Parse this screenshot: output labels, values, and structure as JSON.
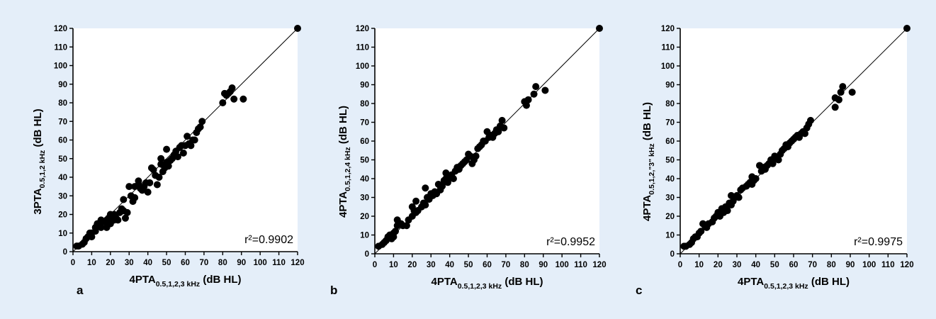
{
  "colors": {
    "background": "#e4eef9",
    "plot": "#ffffff",
    "ink": "#000000"
  },
  "chart_data": [
    {
      "type": "scatter",
      "panel_label": "a",
      "xlabel": {
        "main": "4PTA",
        "sub": "0.5,1,2,3 kHz",
        "unit": " (dB HL)"
      },
      "ylabel": {
        "main": "3PTA",
        "sub": "0.5,1,2 kHz",
        "unit": " (dB HL)"
      },
      "xlim": [
        0,
        120
      ],
      "ylim": [
        0,
        120
      ],
      "xticks": [
        0,
        10,
        20,
        30,
        40,
        50,
        60,
        70,
        80,
        90,
        100,
        110,
        120
      ],
      "yticks": [
        0,
        10,
        20,
        30,
        40,
        50,
        60,
        70,
        80,
        90,
        100,
        110,
        120
      ],
      "identity_line": true,
      "annotation": "r²=0.9902",
      "points": [
        [
          2,
          3
        ],
        [
          3,
          3
        ],
        [
          5,
          4
        ],
        [
          6,
          5
        ],
        [
          7,
          7
        ],
        [
          8,
          8
        ],
        [
          9,
          9
        ],
        [
          9,
          10
        ],
        [
          10,
          10
        ],
        [
          10,
          8
        ],
        [
          12,
          11
        ],
        [
          12,
          13
        ],
        [
          13,
          15
        ],
        [
          14,
          14
        ],
        [
          15,
          17
        ],
        [
          15,
          13
        ],
        [
          16,
          16
        ],
        [
          17,
          16
        ],
        [
          18,
          17
        ],
        [
          18,
          13
        ],
        [
          19,
          18
        ],
        [
          20,
          20
        ],
        [
          20,
          15
        ],
        [
          21,
          19
        ],
        [
          22,
          20
        ],
        [
          22,
          17
        ],
        [
          23,
          18
        ],
        [
          24,
          17
        ],
        [
          25,
          21
        ],
        [
          26,
          23
        ],
        [
          27,
          22
        ],
        [
          27,
          28
        ],
        [
          28,
          18
        ],
        [
          29,
          21
        ],
        [
          30,
          35
        ],
        [
          31,
          30
        ],
        [
          32,
          27
        ],
        [
          33,
          29
        ],
        [
          33,
          35
        ],
        [
          35,
          38
        ],
        [
          35,
          36
        ],
        [
          36,
          34
        ],
        [
          37,
          33
        ],
        [
          38,
          35
        ],
        [
          39,
          37
        ],
        [
          40,
          32
        ],
        [
          41,
          37
        ],
        [
          42,
          45
        ],
        [
          43,
          44
        ],
        [
          44,
          41
        ],
        [
          45,
          36
        ],
        [
          46,
          40
        ],
        [
          47,
          47
        ],
        [
          47,
          50
        ],
        [
          48,
          43
        ],
        [
          49,
          45
        ],
        [
          50,
          48
        ],
        [
          50,
          55
        ],
        [
          51,
          46
        ],
        [
          52,
          49
        ],
        [
          53,
          50
        ],
        [
          54,
          52
        ],
        [
          55,
          54
        ],
        [
          56,
          51
        ],
        [
          57,
          56
        ],
        [
          58,
          57
        ],
        [
          59,
          53
        ],
        [
          60,
          57
        ],
        [
          61,
          62
        ],
        [
          62,
          58
        ],
        [
          63,
          57
        ],
        [
          64,
          60
        ],
        [
          65,
          60
        ],
        [
          66,
          64
        ],
        [
          67,
          66
        ],
        [
          68,
          67
        ],
        [
          69,
          70
        ],
        [
          80,
          80
        ],
        [
          81,
          85
        ],
        [
          82,
          84
        ],
        [
          83,
          85
        ],
        [
          84,
          86
        ],
        [
          85,
          88
        ],
        [
          86,
          82
        ],
        [
          91,
          82
        ],
        [
          120,
          120
        ]
      ]
    },
    {
      "type": "scatter",
      "panel_label": "b",
      "xlabel": {
        "main": "4PTA",
        "sub": "0.5,1,2,3 kHz",
        "unit": " (dB HL)"
      },
      "ylabel": {
        "main": "4PTA",
        "sub": "0.5,1,2,4 kHz",
        "unit": " (dB HL)"
      },
      "xlim": [
        0,
        120
      ],
      "ylim": [
        0,
        120
      ],
      "xticks": [
        0,
        10,
        20,
        30,
        40,
        50,
        60,
        70,
        80,
        90,
        100,
        110,
        120
      ],
      "yticks": [
        0,
        10,
        20,
        30,
        40,
        50,
        60,
        70,
        80,
        90,
        100,
        110,
        120
      ],
      "identity_line": true,
      "annotation": "r²=0.9952",
      "points": [
        [
          2,
          4
        ],
        [
          4,
          5
        ],
        [
          5,
          6
        ],
        [
          6,
          7
        ],
        [
          7,
          9
        ],
        [
          8,
          10
        ],
        [
          9,
          8
        ],
        [
          10,
          9
        ],
        [
          10,
          11
        ],
        [
          11,
          12
        ],
        [
          12,
          15
        ],
        [
          12,
          18
        ],
        [
          13,
          16
        ],
        [
          14,
          16
        ],
        [
          15,
          15
        ],
        [
          17,
          15
        ],
        [
          18,
          18
        ],
        [
          20,
          20
        ],
        [
          20,
          25
        ],
        [
          21,
          23
        ],
        [
          22,
          22
        ],
        [
          22,
          28
        ],
        [
          23,
          23
        ],
        [
          25,
          25
        ],
        [
          26,
          27
        ],
        [
          27,
          26
        ],
        [
          27,
          35
        ],
        [
          28,
          30
        ],
        [
          29,
          29
        ],
        [
          30,
          32
        ],
        [
          31,
          31
        ],
        [
          32,
          33
        ],
        [
          33,
          32
        ],
        [
          34,
          37
        ],
        [
          35,
          34
        ],
        [
          35,
          36
        ],
        [
          36,
          36
        ],
        [
          37,
          39
        ],
        [
          38,
          43
        ],
        [
          38,
          40
        ],
        [
          39,
          38
        ],
        [
          40,
          41
        ],
        [
          41,
          42
        ],
        [
          42,
          40
        ],
        [
          43,
          44
        ],
        [
          44,
          46
        ],
        [
          45,
          45
        ],
        [
          46,
          47
        ],
        [
          47,
          48
        ],
        [
          48,
          49
        ],
        [
          49,
          50
        ],
        [
          50,
          53
        ],
        [
          51,
          52
        ],
        [
          52,
          48
        ],
        [
          53,
          50
        ],
        [
          54,
          52
        ],
        [
          55,
          56
        ],
        [
          56,
          57
        ],
        [
          57,
          58
        ],
        [
          58,
          60
        ],
        [
          59,
          60
        ],
        [
          60,
          65
        ],
        [
          61,
          62
        ],
        [
          62,
          63
        ],
        [
          63,
          62
        ],
        [
          64,
          64
        ],
        [
          65,
          66
        ],
        [
          66,
          65
        ],
        [
          67,
          68
        ],
        [
          68,
          71
        ],
        [
          69,
          67
        ],
        [
          80,
          81
        ],
        [
          81,
          79
        ],
        [
          82,
          82
        ],
        [
          85,
          85
        ],
        [
          86,
          89
        ],
        [
          91,
          87
        ],
        [
          120,
          120
        ]
      ]
    },
    {
      "type": "scatter",
      "panel_label": "c",
      "xlabel": {
        "main": "4PTA",
        "sub": "0.5,1,2,3 kHz",
        "unit": " (dB HL)"
      },
      "ylabel": {
        "main": "4PTA",
        "sub": "0.5,1,2,\"3\" kHz",
        "unit": " (dB HL)"
      },
      "xlim": [
        0,
        120
      ],
      "ylim": [
        0,
        120
      ],
      "xticks": [
        0,
        10,
        20,
        30,
        40,
        50,
        60,
        70,
        80,
        90,
        100,
        110,
        120
      ],
      "yticks": [
        0,
        10,
        20,
        30,
        40,
        50,
        60,
        70,
        80,
        90,
        100,
        110,
        120
      ],
      "identity_line": true,
      "annotation": "r²=0.9975",
      "points": [
        [
          2,
          4
        ],
        [
          3,
          4
        ],
        [
          5,
          5
        ],
        [
          6,
          6
        ],
        [
          7,
          8
        ],
        [
          8,
          9
        ],
        [
          9,
          9
        ],
        [
          10,
          11
        ],
        [
          11,
          12
        ],
        [
          12,
          16
        ],
        [
          13,
          15
        ],
        [
          14,
          14
        ],
        [
          15,
          16
        ],
        [
          17,
          17
        ],
        [
          18,
          19
        ],
        [
          19,
          20
        ],
        [
          20,
          22
        ],
        [
          21,
          20
        ],
        [
          22,
          24
        ],
        [
          23,
          22
        ],
        [
          24,
          25
        ],
        [
          25,
          23
        ],
        [
          26,
          27
        ],
        [
          27,
          26
        ],
        [
          27,
          31
        ],
        [
          28,
          28
        ],
        [
          29,
          30
        ],
        [
          30,
          31
        ],
        [
          31,
          30
        ],
        [
          32,
          34
        ],
        [
          33,
          35
        ],
        [
          35,
          36
        ],
        [
          36,
          37
        ],
        [
          37,
          38
        ],
        [
          38,
          41
        ],
        [
          38,
          37
        ],
        [
          39,
          39
        ],
        [
          40,
          40
        ],
        [
          42,
          47
        ],
        [
          43,
          44
        ],
        [
          44,
          46
        ],
        [
          45,
          45
        ],
        [
          46,
          47
        ],
        [
          47,
          48
        ],
        [
          48,
          50
        ],
        [
          49,
          48
        ],
        [
          50,
          52
        ],
        [
          51,
          51
        ],
        [
          52,
          50
        ],
        [
          53,
          53
        ],
        [
          54,
          55
        ],
        [
          55,
          56
        ],
        [
          56,
          58
        ],
        [
          57,
          57
        ],
        [
          58,
          59
        ],
        [
          59,
          60
        ],
        [
          60,
          61
        ],
        [
          61,
          62
        ],
        [
          62,
          63
        ],
        [
          63,
          62
        ],
        [
          64,
          64
        ],
        [
          65,
          65
        ],
        [
          66,
          64
        ],
        [
          67,
          67
        ],
        [
          68,
          69
        ],
        [
          69,
          71
        ],
        [
          82,
          78
        ],
        [
          82,
          83
        ],
        [
          84,
          82
        ],
        [
          85,
          86
        ],
        [
          86,
          89
        ],
        [
          91,
          86
        ],
        [
          120,
          120
        ]
      ]
    }
  ]
}
